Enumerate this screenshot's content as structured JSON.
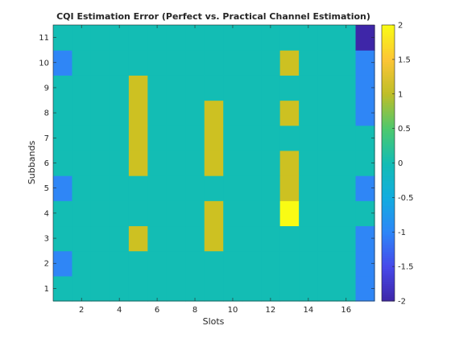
{
  "chart_data": {
    "type": "heatmap",
    "title": "CQI Estimation Error (Perfect vs. Practical Channel Estimation)",
    "xlabel": "Slots",
    "ylabel": "Subbands",
    "x_range": [
      1,
      17
    ],
    "y_range": [
      1,
      11
    ],
    "xticks": [
      "2",
      "4",
      "6",
      "8",
      "10",
      "12",
      "14",
      "16"
    ],
    "yticks": [
      "1",
      "2",
      "3",
      "4",
      "5",
      "6",
      "7",
      "8",
      "9",
      "10",
      "11"
    ],
    "colorbar": {
      "range": [
        -2,
        2
      ],
      "ticks": [
        "-2",
        "-1.5",
        "-1",
        "-0.5",
        "0",
        "0.5",
        "1",
        "1.5",
        "2"
      ],
      "colormap": "parula"
    },
    "values": [
      [
        0,
        0,
        0,
        0,
        0,
        0,
        0,
        0,
        0,
        0,
        0,
        0,
        0,
        0,
        0,
        0,
        -1
      ],
      [
        -1,
        0,
        0,
        0,
        0,
        0,
        0,
        0,
        0,
        0,
        0,
        0,
        0,
        0,
        0,
        0,
        -1
      ],
      [
        0,
        0,
        0,
        0,
        1,
        0,
        0,
        0,
        1,
        0,
        0,
        0,
        0,
        0,
        0,
        0,
        -1
      ],
      [
        0,
        0,
        0,
        0,
        0,
        0,
        0,
        0,
        1,
        0,
        0,
        0,
        2,
        0,
        0,
        0,
        0
      ],
      [
        -1,
        0,
        0,
        0,
        0,
        0,
        0,
        0,
        0,
        0,
        0,
        0,
        1,
        0,
        0,
        0,
        -1
      ],
      [
        0,
        0,
        0,
        0,
        1,
        0,
        0,
        0,
        1,
        0,
        0,
        0,
        1,
        0,
        0,
        0,
        0
      ],
      [
        0,
        0,
        0,
        0,
        1,
        0,
        0,
        0,
        1,
        0,
        0,
        0,
        0,
        0,
        0,
        0,
        0
      ],
      [
        0,
        0,
        0,
        0,
        1,
        0,
        0,
        0,
        1,
        0,
        0,
        0,
        1,
        0,
        0,
        0,
        -1
      ],
      [
        0,
        0,
        0,
        0,
        1,
        0,
        0,
        0,
        0,
        0,
        0,
        0,
        0,
        0,
        0,
        0,
        -1
      ],
      [
        -1,
        0,
        0,
        0,
        0,
        0,
        0,
        0,
        0,
        0,
        0,
        0,
        1,
        0,
        0,
        0,
        -1
      ],
      [
        0,
        0,
        0,
        0,
        0,
        0,
        0,
        0,
        0,
        0,
        0,
        0,
        0,
        0,
        0,
        0,
        -2
      ]
    ]
  }
}
